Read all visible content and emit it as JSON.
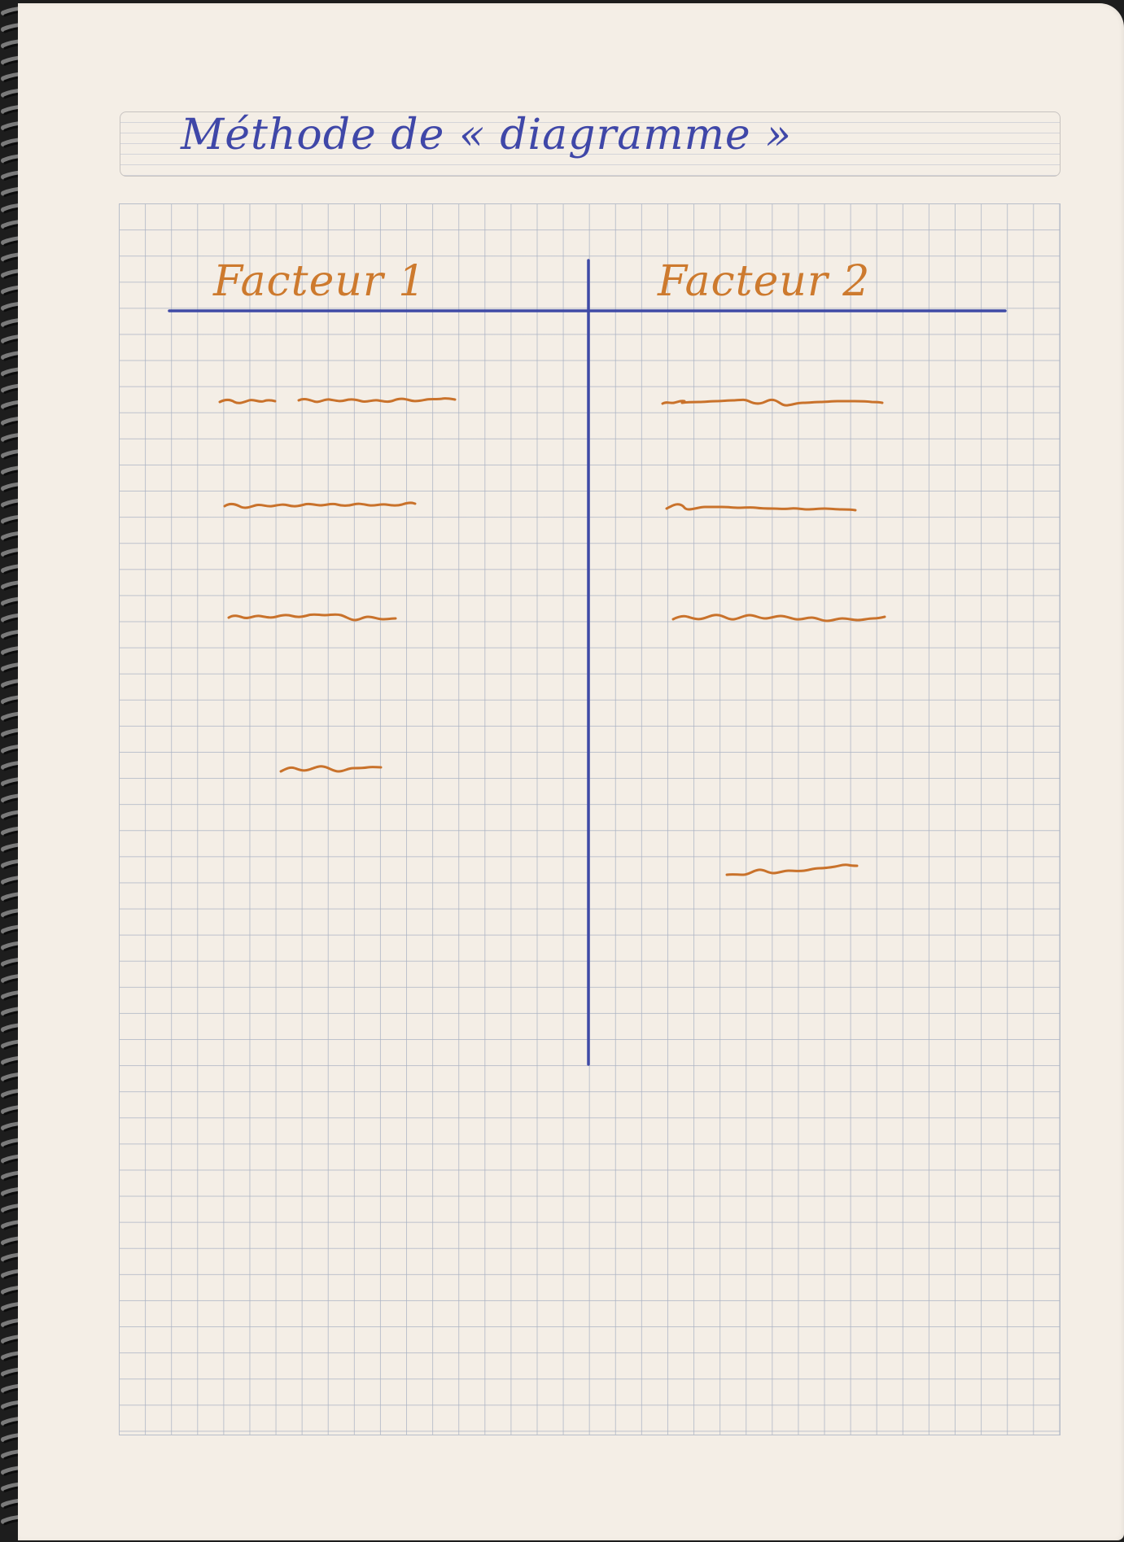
{
  "document": {
    "title": "Méthode de « diagramme »",
    "columns": [
      {
        "heading": "Facteur 1"
      },
      {
        "heading": "Facteur 2"
      }
    ]
  },
  "colors": {
    "title_ink": "#3f47a8",
    "rule_ink": "#3f4aa6",
    "entry_ink": "#c9722b",
    "paper": "#f4eee6",
    "grid": "#aab2c3"
  },
  "entries": {
    "left_column_scribbles": 4,
    "right_column_scribbles": 4
  }
}
